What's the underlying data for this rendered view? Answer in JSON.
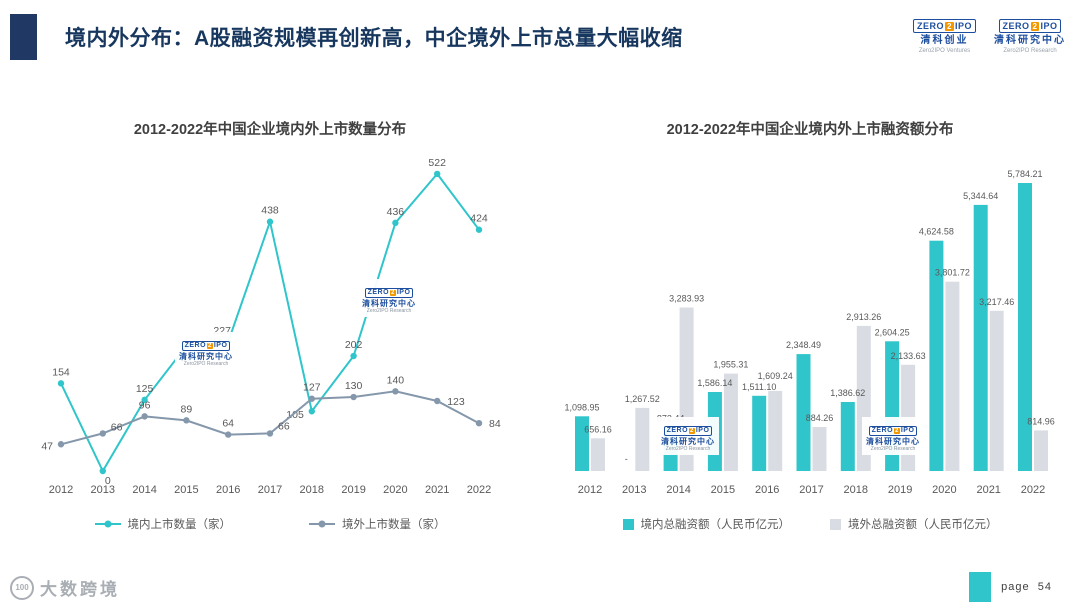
{
  "header": {
    "title": "境内外分布：A股融资规模再创新高，中企境外上市总量大幅收缩",
    "logos": [
      {
        "wordmark": {
          "left": "ZERO",
          "mid": "2",
          "right": "IPO"
        },
        "cn": "清科创业",
        "en": "Zero2IPO Ventures"
      },
      {
        "wordmark": {
          "left": "ZERO",
          "mid": "2",
          "right": "IPO"
        },
        "cn": "清科研究中心",
        "en": "Zero2IPO Research"
      }
    ]
  },
  "watermark": {
    "wordmark": {
      "left": "ZERO",
      "mid": "2",
      "right": "IPO"
    },
    "cn": "清科研究中心",
    "en": "Zero2IPO Research"
  },
  "colors": {
    "accent_teal": "#2FC5CA",
    "gray_line": "#8497AB",
    "gray_bar": "#D9DDE3",
    "navy": "#17375E",
    "logo_blue": "#1D4E9E",
    "logo_orange": "#F39800"
  },
  "chart_data": [
    {
      "type": "line",
      "title": "2012-2022年中国企业境内外上市数量分布",
      "categories": [
        "2012",
        "2013",
        "2014",
        "2015",
        "2016",
        "2017",
        "2018",
        "2019",
        "2020",
        "2021",
        "2022"
      ],
      "series": [
        {
          "name": "境内上市数量（家）",
          "color": "#2FC5CA",
          "values": [
            154,
            0,
            125,
            220,
            227,
            438,
            105,
            202,
            436,
            522,
            424
          ],
          "labels": [
            "154",
            "0",
            "125",
            "",
            "227",
            "438",
            "105",
            "202",
            "436",
            "522",
            "424"
          ]
        },
        {
          "name": "境外上市数量（家）",
          "color": "#8497AB",
          "values": [
            47,
            66,
            96,
            89,
            64,
            66,
            127,
            130,
            140,
            123,
            84
          ],
          "labels": [
            "47",
            "66",
            "96",
            "89",
            "64",
            "66",
            "127",
            "130",
            "140",
            "123",
            "84"
          ]
        }
      ],
      "ylim": [
        0,
        600
      ],
      "grid": false,
      "legend_position": "bottom"
    },
    {
      "type": "bar",
      "title": "2012-2022年中国企业境内外上市融资额分布",
      "categories": [
        "2012",
        "2013",
        "2014",
        "2015",
        "2016",
        "2017",
        "2018",
        "2019",
        "2020",
        "2021",
        "2022"
      ],
      "series": [
        {
          "name": "境内总融资额（人民币亿元）",
          "color": "#2FC5CA",
          "values": [
            1098.95,
            0,
            872.44,
            1586.14,
            1511.1,
            2348.49,
            1386.62,
            2604.25,
            4624.58,
            5344.64,
            5784.21
          ],
          "labels": [
            "1,098.95",
            "-",
            "872.44",
            "1,586.14",
            "1,511.10",
            "2,348.49",
            "1,386.62",
            "2,604.25",
            "4,624.58",
            "5,344.64",
            "5,784.21"
          ]
        },
        {
          "name": "境外总融资额（人民币亿元）",
          "color": "#D9DDE3",
          "values": [
            656.16,
            1267.52,
            3283.93,
            1955.31,
            1609.24,
            884.26,
            2913.26,
            2133.63,
            3801.72,
            3217.46,
            814.96
          ],
          "labels": [
            "656.16",
            "1,267.52",
            "3,283.93",
            "1,955.31",
            "1,609.24",
            "884.26",
            "2,913.26",
            "2,133.63",
            "3,801.72",
            "3,217.46",
            "814.96"
          ]
        }
      ],
      "ylim": [
        0,
        6000
      ],
      "grid": false,
      "legend_position": "bottom"
    }
  ],
  "footer": {
    "brand": "大数跨境",
    "brand_mark": "100",
    "page_label": "page",
    "page_number": "54"
  }
}
